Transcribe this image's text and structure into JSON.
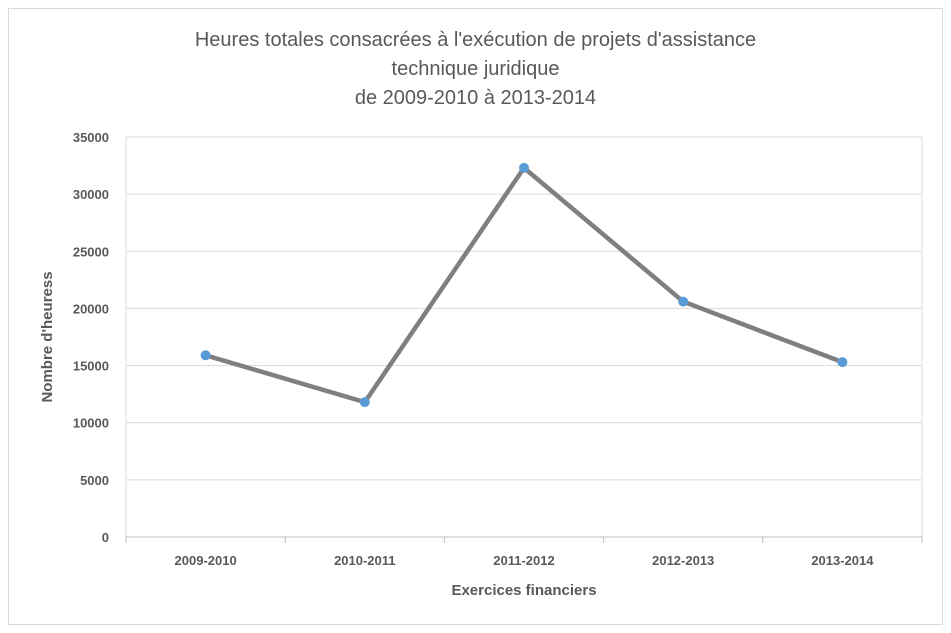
{
  "chart_data": {
    "type": "line",
    "title_lines": [
      "Heures totales consacrées à l'exécution de projets d'assistance",
      "technique juridique",
      "de 2009-2010 à 2013-2014"
    ],
    "xlabel": "Exercices financiers",
    "ylabel": "Nombre d'heuress",
    "categories": [
      "2009-2010",
      "2010-2011",
      "2011-2012",
      "2012-2013",
      "2013-2014"
    ],
    "values": [
      15900,
      11800,
      32300,
      20600,
      15300
    ],
    "ylim": [
      0,
      35000
    ],
    "yticks": [
      0,
      5000,
      10000,
      15000,
      20000,
      25000,
      30000,
      35000
    ],
    "grid": true,
    "line_color": "#7f7f7f",
    "marker_color": "#5b9bd5",
    "grid_color": "#d9d9d9"
  }
}
